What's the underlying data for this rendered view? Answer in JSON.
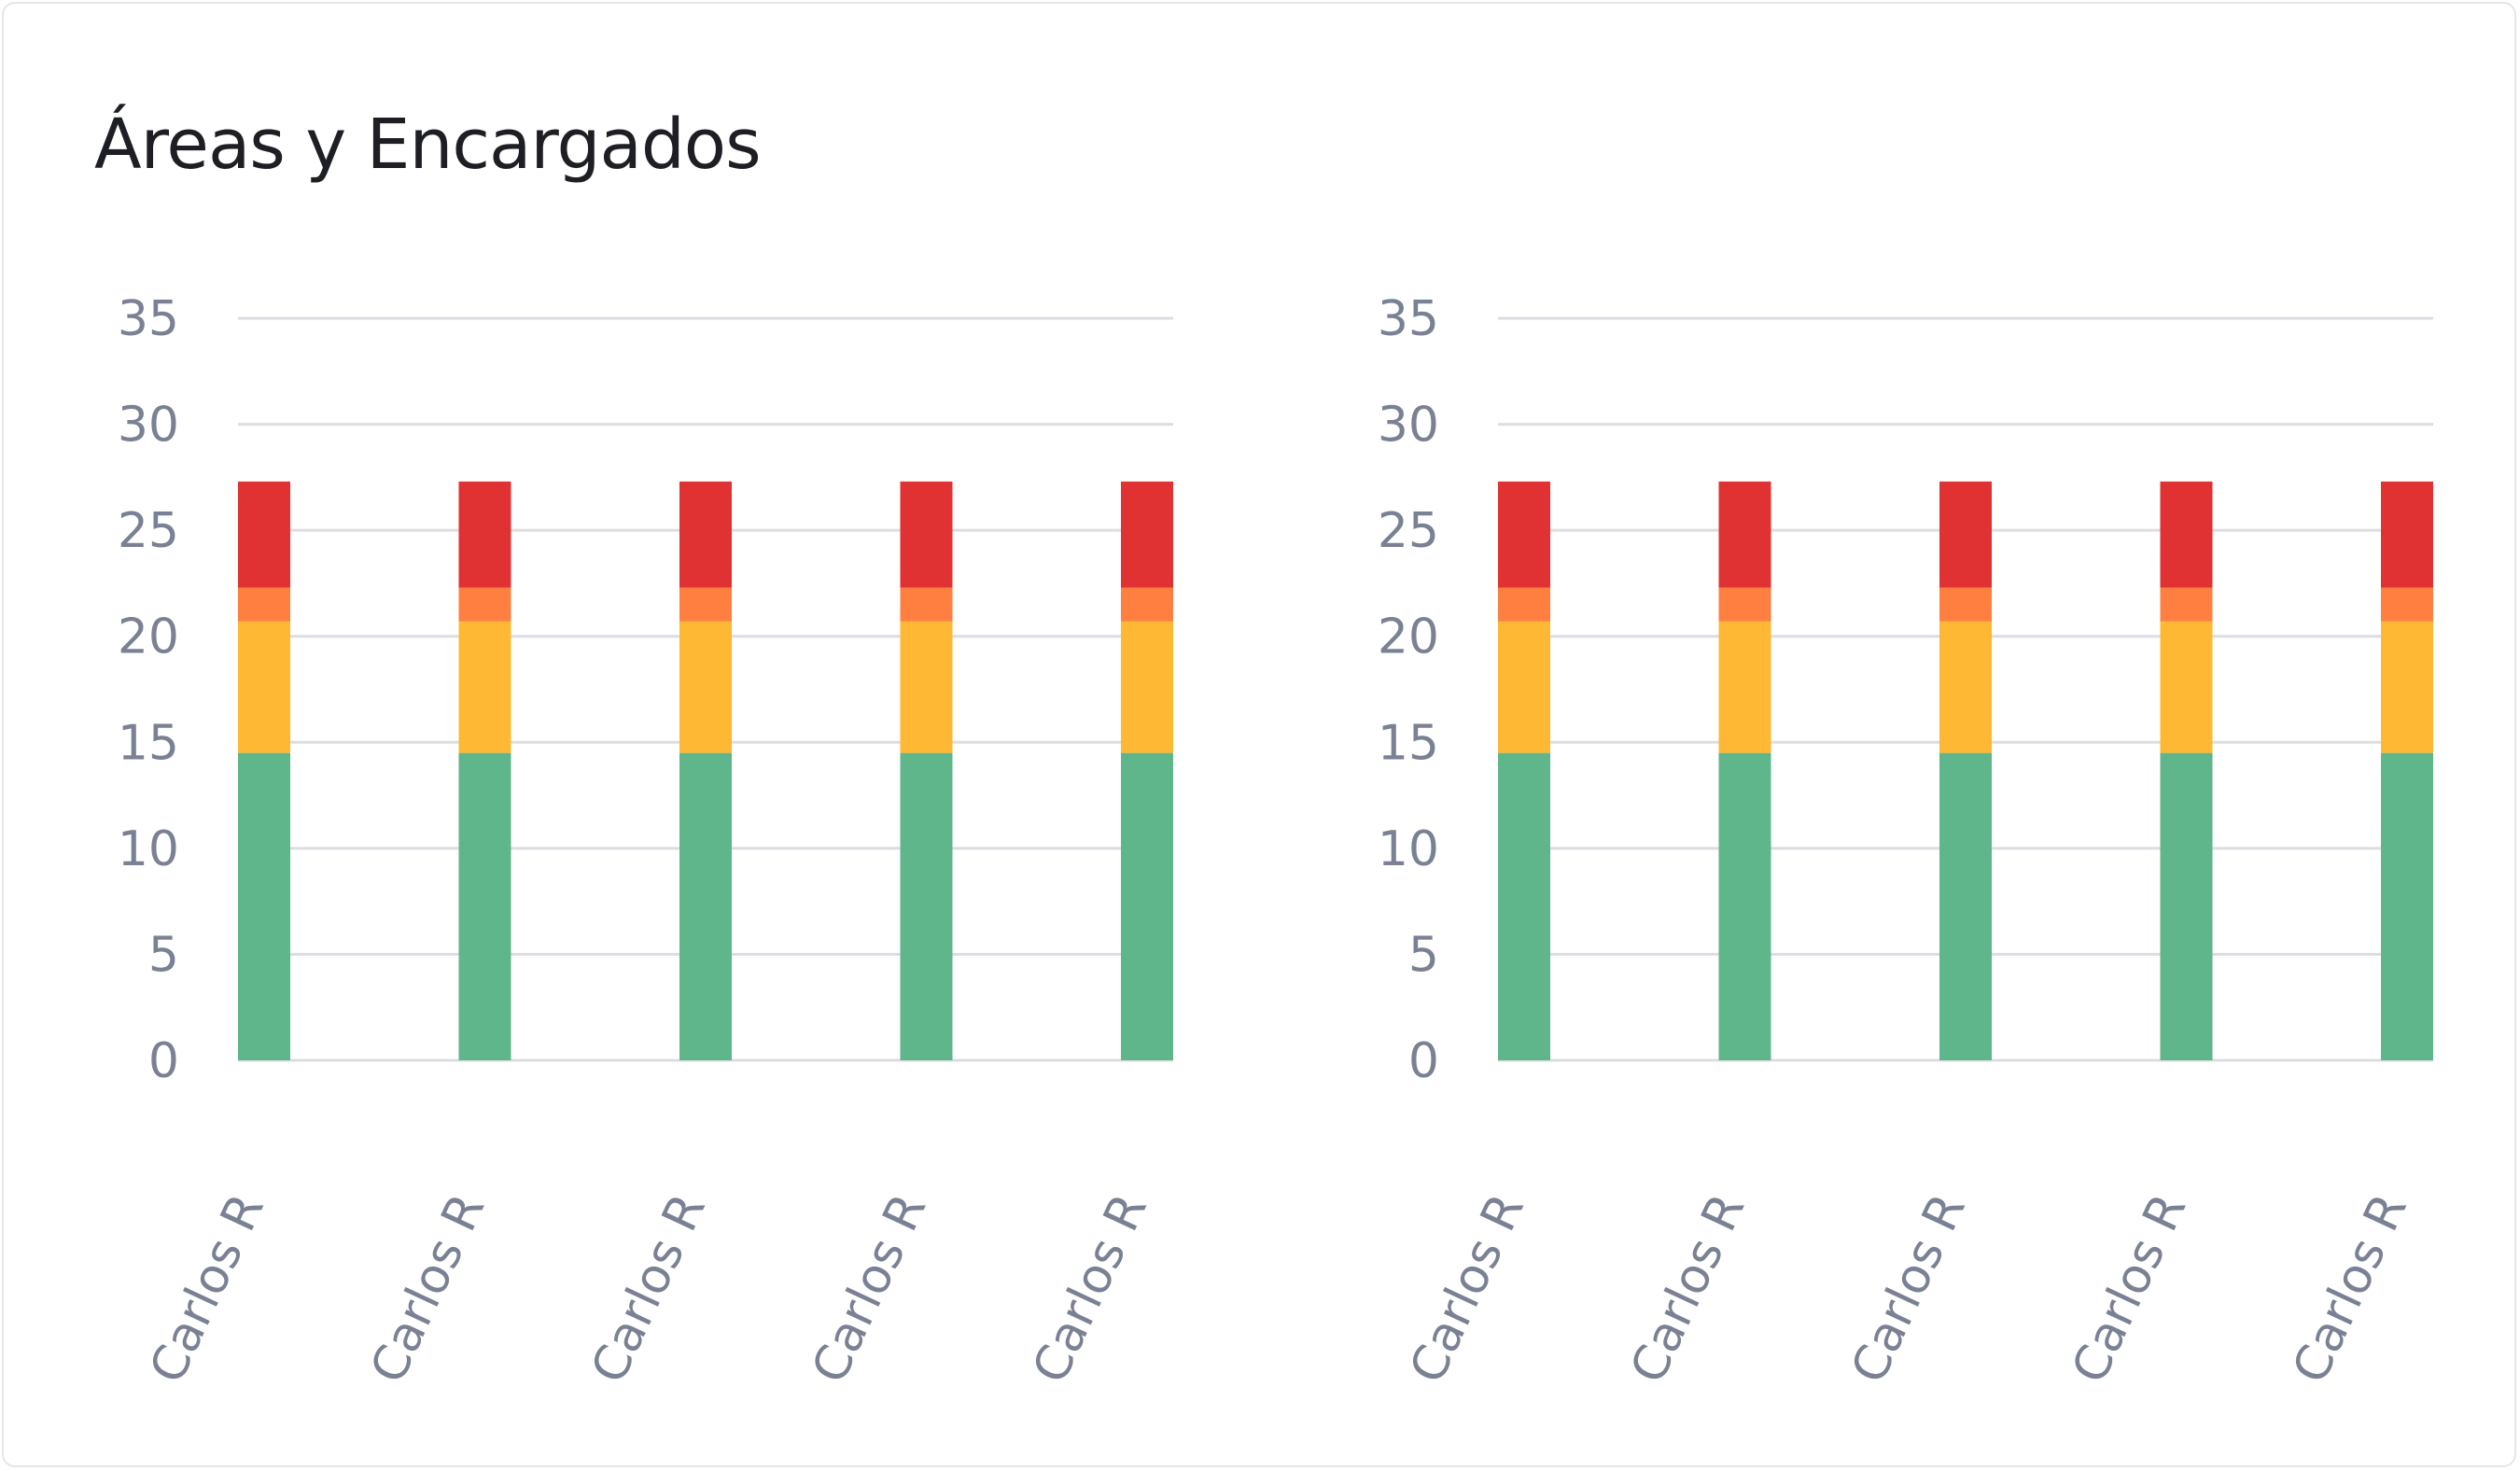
{
  "card": {
    "title": "Áreas y Encargados"
  },
  "chart_data": [
    {
      "type": "bar",
      "stacked": true,
      "categories": [
        "Carlos R",
        "Carlos R",
        "Carlos R",
        "Carlos R",
        "Carlos R"
      ],
      "series": [
        {
          "color": "#5fb68a",
          "values": [
            14.5,
            14.5,
            14.5,
            14.5,
            14.5
          ]
        },
        {
          "color": "#ffb833",
          "values": [
            6.2,
            6.2,
            6.2,
            6.2,
            6.2
          ]
        },
        {
          "color": "#ff7f40",
          "values": [
            1.6,
            1.6,
            1.6,
            1.6,
            1.6
          ]
        },
        {
          "color": "#e03232",
          "values": [
            5.0,
            5.0,
            5.0,
            5.0,
            5.0
          ]
        }
      ],
      "yticks": [
        0,
        5,
        10,
        15,
        20,
        25,
        30,
        35
      ],
      "ylim": [
        0,
        35
      ],
      "grid": true,
      "xlabel": "",
      "ylabel": ""
    },
    {
      "type": "bar",
      "stacked": true,
      "categories": [
        "Carlos R",
        "Carlos R",
        "Carlos R",
        "Carlos R",
        "Carlos R"
      ],
      "series": [
        {
          "color": "#5fb68a",
          "values": [
            14.5,
            14.5,
            14.5,
            14.5,
            14.5
          ]
        },
        {
          "color": "#ffb833",
          "values": [
            6.2,
            6.2,
            6.2,
            6.2,
            6.2
          ]
        },
        {
          "color": "#ff7f40",
          "values": [
            1.6,
            1.6,
            1.6,
            1.6,
            1.6
          ]
        },
        {
          "color": "#e03232",
          "values": [
            5.0,
            5.0,
            5.0,
            5.0,
            5.0
          ]
        }
      ],
      "yticks": [
        0,
        5,
        10,
        15,
        20,
        25,
        30,
        35
      ],
      "ylim": [
        0,
        35
      ],
      "grid": true,
      "xlabel": "",
      "ylabel": ""
    }
  ]
}
